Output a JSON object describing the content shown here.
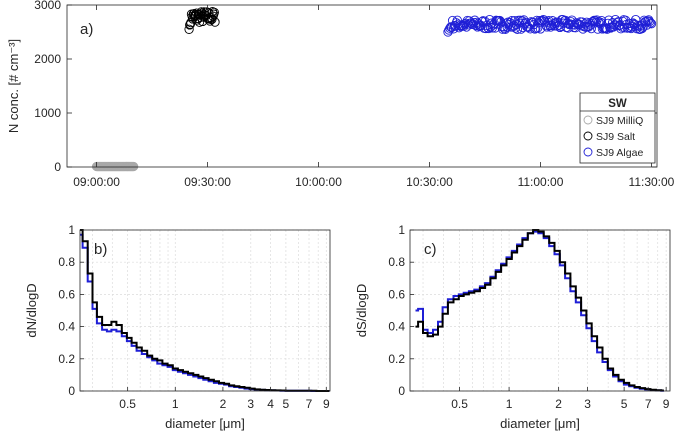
{
  "figure": {
    "background": "#ffffff"
  },
  "colors": {
    "milliq": "#a8a8a8",
    "salt": "#000000",
    "algae": "#1f1fd6",
    "grid": "#dcdcdc",
    "axis": "#262626"
  },
  "chart_data": [
    {
      "id": "a",
      "type": "scatter",
      "panel_label": "a)",
      "xlabel": "",
      "ylabel": "N conc. [# cm⁻³]",
      "x_unit": "time of day",
      "xlim": [
        "08:52:00",
        "11:31:30"
      ],
      "ylim": [
        0,
        3000
      ],
      "xticks": [
        "09:00:00",
        "09:30:00",
        "10:00:00",
        "10:30:00",
        "11:00:00",
        "11:30:00"
      ],
      "yticks": [
        0,
        1000,
        2000,
        3000
      ],
      "grid": false,
      "legend": {
        "title": "SW",
        "placement": "lower-right"
      },
      "series": [
        {
          "name": "SJ9 MilliQ",
          "color_key": "milliq",
          "marker": "circle",
          "filled": true,
          "x_start": "09:00:00",
          "x_end": "09:10:00",
          "step_seconds": 10,
          "y_value": 10
        },
        {
          "name": "SJ9 Salt",
          "color_key": "salt",
          "marker": "circle",
          "filled": false,
          "x_start": "09:25:00",
          "x_end": "09:32:00",
          "step_seconds": 10,
          "y_start": 2550,
          "y_typical": 2780,
          "y_jitter": 110
        },
        {
          "name": "SJ9 Algae",
          "color_key": "algae",
          "marker": "circle",
          "filled": false,
          "x_start": "10:35:00",
          "x_end": "11:30:00",
          "step_seconds": 15,
          "y_start": 2500,
          "y_typical": 2640,
          "y_jitter": 90
        }
      ]
    },
    {
      "id": "b",
      "type": "line",
      "panel_label": "b)",
      "xlabel": "diameter [μm]",
      "ylabel": "dN/dlogD",
      "x_scale": "log",
      "xlim": [
        0.25,
        9.5
      ],
      "ylim": [
        0,
        1
      ],
      "xticks": [
        0.5,
        1,
        2,
        3,
        4,
        5,
        7,
        9
      ],
      "xtick_labels": [
        "0.5",
        "1",
        "2",
        "3",
        "4",
        "5",
        "7",
        "9"
      ],
      "yticks": [
        0,
        0.2,
        0.4,
        0.6,
        0.8,
        1
      ],
      "ytick_labels": [
        "0",
        "0.2",
        "0.4",
        "0.6",
        "0.8",
        "1"
      ],
      "grid": true,
      "step": true,
      "x": [
        0.25,
        0.27,
        0.29,
        0.31,
        0.33,
        0.36,
        0.38,
        0.41,
        0.44,
        0.48,
        0.51,
        0.55,
        0.59,
        0.64,
        0.69,
        0.74,
        0.8,
        0.86,
        0.93,
        1.0,
        1.08,
        1.16,
        1.25,
        1.35,
        1.45,
        1.56,
        1.69,
        1.82,
        1.96,
        2.11,
        2.27,
        2.45,
        2.64,
        2.84,
        3.06,
        3.3,
        3.56,
        3.83,
        4.13,
        4.45,
        4.8,
        5.17,
        5.57,
        6.0,
        6.47,
        6.97,
        7.51,
        8.09,
        8.72,
        9.4
      ],
      "series": [
        {
          "name": "SJ9 Salt",
          "color_key": "salt",
          "values": [
            1.0,
            0.93,
            0.73,
            0.55,
            0.46,
            0.41,
            0.41,
            0.43,
            0.41,
            0.36,
            0.33,
            0.3,
            0.27,
            0.25,
            0.22,
            0.2,
            0.19,
            0.17,
            0.16,
            0.14,
            0.13,
            0.12,
            0.11,
            0.1,
            0.09,
            0.08,
            0.07,
            0.06,
            0.05,
            0.045,
            0.035,
            0.03,
            0.025,
            0.02,
            0.015,
            0.01,
            0.008,
            0.006,
            0.005,
            0.004,
            0.003,
            0.002,
            0.002,
            0.001,
            0.001,
            0.001,
            0.001,
            0.0,
            0.0,
            0.0
          ]
        },
        {
          "name": "SJ9 Algae",
          "color_key": "algae",
          "values": [
            0.97,
            0.89,
            0.68,
            0.51,
            0.42,
            0.38,
            0.37,
            0.38,
            0.37,
            0.34,
            0.31,
            0.28,
            0.25,
            0.23,
            0.21,
            0.19,
            0.17,
            0.16,
            0.15,
            0.13,
            0.12,
            0.11,
            0.1,
            0.09,
            0.08,
            0.07,
            0.06,
            0.05,
            0.045,
            0.04,
            0.03,
            0.025,
            0.02,
            0.015,
            0.012,
            0.009,
            0.007,
            0.005,
            0.004,
            0.003,
            0.002,
            0.002,
            0.001,
            0.001,
            0.001,
            0.001,
            0.0,
            0.0,
            0.0,
            0.0
          ]
        }
      ]
    },
    {
      "id": "c",
      "type": "line",
      "panel_label": "c)",
      "xlabel": "diameter [μm]",
      "ylabel": "dS/dlogD",
      "x_scale": "log",
      "xlim": [
        0.25,
        9.5
      ],
      "ylim": [
        0,
        1
      ],
      "xticks": [
        0.5,
        1,
        2,
        3,
        5,
        7,
        9
      ],
      "xtick_labels": [
        "0.5",
        "1",
        "2",
        "3",
        "5",
        "7",
        "9"
      ],
      "yticks": [
        0,
        0.2,
        0.4,
        0.6,
        0.8,
        1
      ],
      "ytick_labels": [
        "0",
        "0.2",
        "0.4",
        "0.6",
        "0.8",
        "1"
      ],
      "grid": true,
      "step": true,
      "x": [
        0.27,
        0.29,
        0.31,
        0.33,
        0.36,
        0.38,
        0.41,
        0.44,
        0.48,
        0.51,
        0.55,
        0.59,
        0.64,
        0.69,
        0.74,
        0.8,
        0.86,
        0.93,
        1.0,
        1.08,
        1.16,
        1.25,
        1.35,
        1.45,
        1.56,
        1.69,
        1.82,
        1.96,
        2.11,
        2.27,
        2.45,
        2.64,
        2.84,
        3.06,
        3.3,
        3.56,
        3.83,
        4.13,
        4.45,
        4.8,
        5.17,
        5.57,
        6.0,
        6.47,
        6.97,
        7.51,
        8.09,
        8.72
      ],
      "series": [
        {
          "name": "SJ9 Salt",
          "color_key": "salt",
          "values": [
            0.4,
            0.43,
            0.36,
            0.34,
            0.35,
            0.4,
            0.48,
            0.55,
            0.57,
            0.59,
            0.6,
            0.61,
            0.62,
            0.64,
            0.66,
            0.7,
            0.74,
            0.78,
            0.82,
            0.86,
            0.9,
            0.94,
            0.98,
            1.0,
            0.99,
            0.96,
            0.92,
            0.87,
            0.8,
            0.73,
            0.65,
            0.58,
            0.5,
            0.42,
            0.34,
            0.27,
            0.2,
            0.14,
            0.1,
            0.07,
            0.05,
            0.035,
            0.025,
            0.018,
            0.012,
            0.008,
            0.005,
            0.003
          ]
        },
        {
          "name": "SJ9 Algae",
          "color_key": "algae",
          "values": [
            0.5,
            0.51,
            0.38,
            0.36,
            0.38,
            0.43,
            0.52,
            0.57,
            0.59,
            0.6,
            0.61,
            0.62,
            0.63,
            0.65,
            0.67,
            0.71,
            0.75,
            0.79,
            0.83,
            0.87,
            0.91,
            0.95,
            0.98,
            0.99,
            0.98,
            0.95,
            0.9,
            0.85,
            0.78,
            0.7,
            0.62,
            0.55,
            0.47,
            0.39,
            0.31,
            0.24,
            0.18,
            0.13,
            0.09,
            0.06,
            0.04,
            0.03,
            0.02,
            0.014,
            0.01,
            0.006,
            0.004,
            0.002
          ]
        }
      ]
    }
  ]
}
